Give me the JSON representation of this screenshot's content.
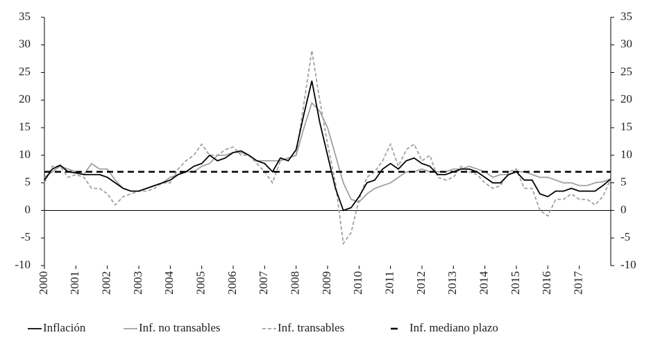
{
  "chart_data": {
    "type": "line",
    "x": [
      2000,
      2000.25,
      2000.5,
      2000.75,
      2001,
      2001.25,
      2001.5,
      2001.75,
      2002,
      2002.25,
      2002.5,
      2002.75,
      2003,
      2003.25,
      2003.5,
      2003.75,
      2004,
      2004.25,
      2004.5,
      2004.75,
      2005,
      2005.25,
      2005.5,
      2005.75,
      2006,
      2006.25,
      2006.5,
      2006.75,
      2007,
      2007.25,
      2007.5,
      2007.75,
      2008,
      2008.25,
      2008.5,
      2008.75,
      2009,
      2009.25,
      2009.5,
      2009.75,
      2010,
      2010.25,
      2010.5,
      2010.75,
      2011,
      2011.25,
      2011.5,
      2011.75,
      2012,
      2012.25,
      2012.5,
      2012.75,
      2013,
      2013.25,
      2013.5,
      2013.75,
      2014,
      2014.25,
      2014.5,
      2014.75,
      2015,
      2015.25,
      2015.5,
      2015.75,
      2016,
      2016.25,
      2016.5,
      2016.75,
      2017,
      2017.25,
      2017.5,
      2017.75,
      2018
    ],
    "series": [
      {
        "name": "Inflación",
        "color": "#000000",
        "dash": "none",
        "values": [
          5.5,
          7.5,
          8.2,
          7,
          6.8,
          6.5,
          6.5,
          6.5,
          6,
          5,
          4,
          3.5,
          3.5,
          4,
          4.5,
          5,
          5.5,
          6.5,
          7,
          8,
          8.5,
          10,
          9,
          9.5,
          10.5,
          10.8,
          10,
          9,
          8.5,
          7,
          9.5,
          9,
          11,
          17.5,
          23.5,
          16,
          10,
          4,
          0,
          0.5,
          2.5,
          5,
          5.5,
          7.5,
          8.5,
          7.5,
          9,
          9.5,
          8.5,
          8,
          6.5,
          6.5,
          7,
          7.5,
          7.5,
          7,
          6,
          5,
          5,
          6.5,
          7,
          5.5,
          5.5,
          3,
          2.5,
          3.5,
          3.5,
          4,
          3.5,
          3.5,
          3.5,
          4.5,
          5.7
        ]
      },
      {
        "name": "Inf. no transables",
        "color": "#a0a0a0",
        "dash": "none",
        "values": [
          6,
          7,
          8,
          7.5,
          7,
          6.5,
          8.5,
          7.5,
          7.5,
          5.5,
          4,
          3.5,
          3.5,
          4,
          4.5,
          5,
          6,
          6.5,
          7,
          7,
          8,
          8.5,
          10,
          10,
          10.5,
          10.5,
          10,
          9,
          9,
          9,
          9,
          9.5,
          10,
          15,
          19.5,
          18,
          15,
          10,
          5,
          2,
          1.5,
          3,
          4,
          4.5,
          5,
          6,
          7,
          7,
          7.5,
          7,
          7,
          7,
          7.5,
          7.5,
          8,
          7.5,
          7,
          6,
          6.5,
          6.5,
          7,
          7,
          6.5,
          6,
          6,
          5.5,
          5,
          5,
          4.5,
          4.5,
          5,
          5.2,
          5.7
        ]
      },
      {
        "name": "Inf. transables",
        "color": "#a0a0a0",
        "dash": "5,3",
        "values": [
          5,
          8,
          8,
          6,
          6.5,
          6,
          4,
          4,
          3,
          1,
          2.5,
          3,
          3.5,
          3.5,
          4,
          5,
          5,
          7.5,
          9,
          10,
          12,
          10,
          10,
          11,
          11.5,
          10,
          10,
          8.5,
          7,
          5,
          9,
          9.5,
          10,
          19.5,
          29,
          20,
          12,
          5,
          -6,
          -4,
          2,
          6,
          7,
          9,
          12,
          8,
          11,
          12,
          9,
          10,
          6,
          5.5,
          6,
          8,
          7,
          6.5,
          5,
          4,
          4.5,
          7,
          7.5,
          4,
          4,
          0,
          -1,
          2,
          2,
          3,
          2,
          2,
          1,
          2.5,
          5.7
        ]
      }
    ],
    "reference_lines": [
      {
        "name": "Inf. mediano plazo",
        "value": 7,
        "color": "#000000",
        "dash": "9,6"
      }
    ],
    "xlim": [
      2000,
      2018
    ],
    "xticks": [
      2000,
      2001,
      2002,
      2003,
      2004,
      2005,
      2006,
      2007,
      2008,
      2009,
      2010,
      2011,
      2012,
      2013,
      2014,
      2015,
      2016,
      2017
    ],
    "ylim": [
      -10,
      35
    ],
    "yticks": [
      -10,
      -5,
      0,
      5,
      10,
      15,
      20,
      25,
      30,
      35
    ],
    "y2lim": [
      -10,
      35
    ],
    "y2ticks": [
      -10,
      -5,
      0,
      5,
      10,
      15,
      20,
      25,
      30,
      35
    ]
  }
}
